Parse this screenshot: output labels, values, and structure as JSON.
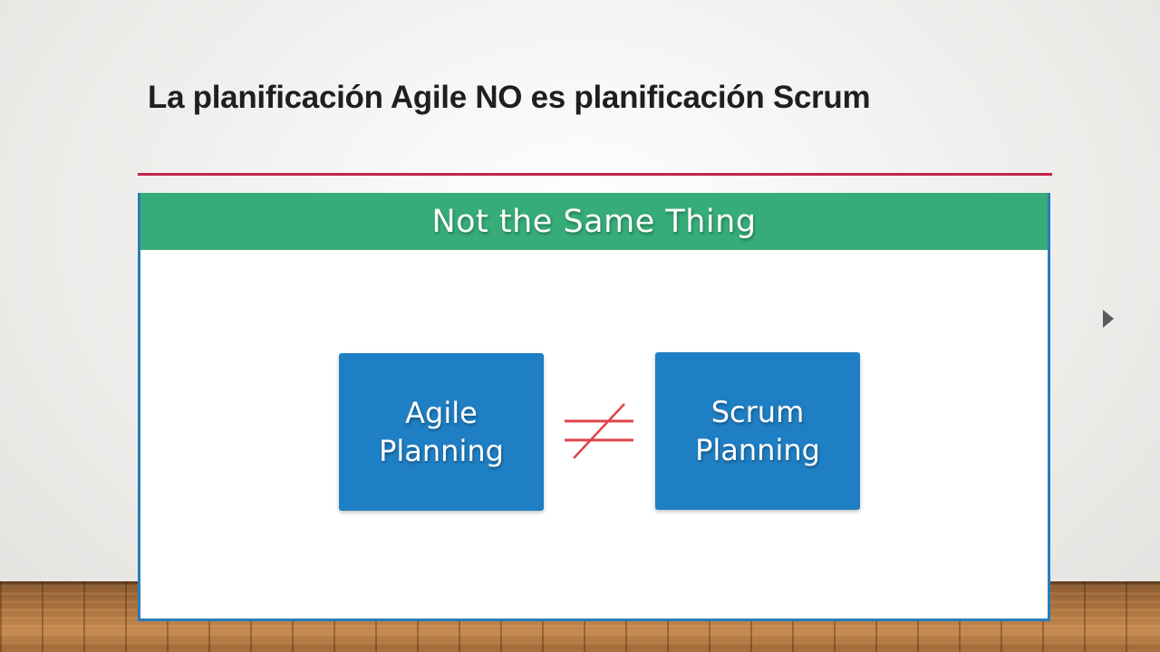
{
  "slide": {
    "title": "La planificación Agile NO es planificación Scrum",
    "accent_color": "#c0254a",
    "next_icon": "triangle-right-icon"
  },
  "image": {
    "banner_text": "Not the Same Thing",
    "banner_color": "#36ad78",
    "box_color": "#1f7fc4",
    "left_box": "Agile\nPlanning",
    "right_box": "Scrum\nPlanning",
    "symbol_icon": "not-equal-icon",
    "symbol_color": "#e0444c"
  }
}
